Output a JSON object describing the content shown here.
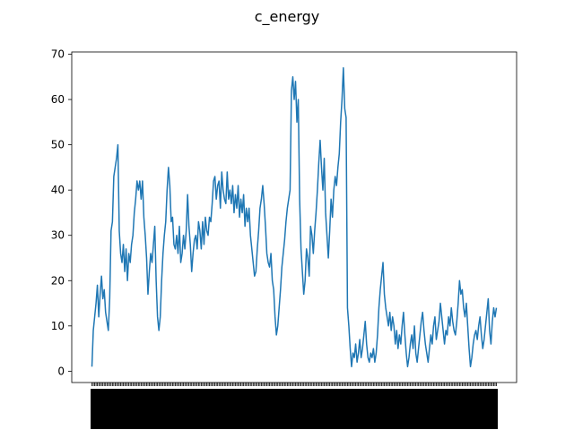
{
  "chart_data": {
    "type": "line",
    "title": "c_energy",
    "xlabel": "",
    "ylabel": "",
    "ylim": [
      -2.5,
      70.5
    ],
    "yticks": [
      0,
      10,
      20,
      30,
      40,
      50,
      60,
      70
    ],
    "xtick_labels": "dense, overlapping (unreadable)",
    "grid": false,
    "legend": "none",
    "series": [
      {
        "color": "#1f77b4",
        "values": [
          1,
          9,
          12,
          15,
          19,
          12,
          17,
          21,
          16,
          18,
          13,
          11,
          9,
          16,
          31,
          33,
          43,
          45,
          47,
          50,
          31,
          26,
          24,
          28,
          22,
          27,
          20,
          26,
          24,
          28,
          30,
          35,
          38,
          42,
          40,
          42,
          38,
          42,
          34,
          30,
          25,
          17,
          22,
          26,
          24,
          28,
          32,
          20,
          12,
          9,
          12,
          20,
          26,
          30,
          33,
          40,
          45,
          41,
          33,
          34,
          28,
          27,
          30,
          26,
          32,
          24,
          26,
          30,
          27,
          31,
          39,
          32,
          28,
          22,
          26,
          29,
          30,
          27,
          33,
          31,
          27,
          33,
          28,
          34,
          31,
          30,
          34,
          33,
          37,
          42,
          43,
          38,
          41,
          42,
          36,
          44,
          40,
          38,
          37,
          44,
          38,
          40,
          37,
          41,
          35,
          39,
          36,
          41,
          34,
          38,
          35,
          39,
          32,
          36,
          33,
          36,
          30,
          27,
          24,
          21,
          22,
          27,
          31,
          36,
          38,
          41,
          37,
          32,
          26,
          24,
          23,
          26,
          20,
          18,
          12,
          8,
          10,
          14,
          18,
          23,
          26,
          29,
          33,
          36,
          38,
          40,
          62,
          65,
          60,
          64,
          55,
          60,
          38,
          27,
          22,
          17,
          20,
          27,
          25,
          21,
          32,
          30,
          26,
          31,
          35,
          40,
          46,
          51,
          45,
          40,
          47,
          35,
          30,
          25,
          31,
          38,
          34,
          40,
          43,
          41,
          45,
          48,
          55,
          60,
          67,
          58,
          56,
          14,
          10,
          5,
          1,
          4,
          3,
          6,
          2,
          4,
          7,
          3,
          5,
          8,
          11,
          6,
          3,
          2,
          4,
          3,
          5,
          2,
          4,
          8,
          14,
          18,
          21,
          24,
          17,
          14,
          12,
          10,
          13,
          9,
          12,
          10,
          6,
          9,
          5,
          8,
          6,
          10,
          13,
          8,
          4,
          1,
          3,
          6,
          8,
          5,
          10,
          4,
          2,
          5,
          8,
          11,
          13,
          9,
          6,
          4,
          2,
          5,
          8,
          6,
          10,
          12,
          7,
          9,
          11,
          15,
          12,
          9,
          6,
          9,
          8,
          12,
          10,
          14,
          11,
          9,
          8,
          11,
          15,
          20,
          17,
          18,
          14,
          12,
          15,
          10,
          5,
          1,
          3,
          6,
          8,
          9,
          7,
          10,
          12,
          8,
          5,
          7,
          10,
          13,
          16,
          9,
          6,
          11,
          14,
          12,
          14
        ]
      }
    ]
  }
}
